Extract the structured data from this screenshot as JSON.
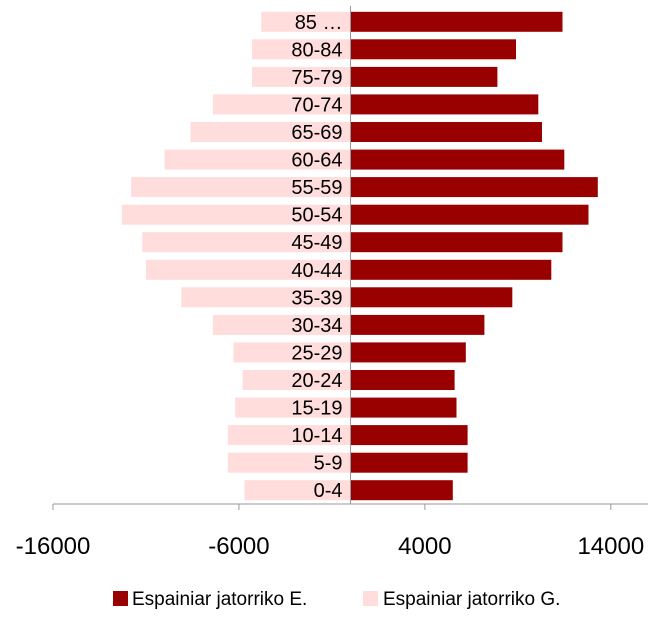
{
  "chart_data": {
    "type": "bar",
    "orientation": "horizontal",
    "layout": "population-pyramid",
    "categories": [
      "0-4",
      "5-9",
      "10-14",
      "15-19",
      "20-24",
      "25-29",
      "30-34",
      "35-39",
      "40-44",
      "45-49",
      "50-54",
      "55-59",
      "60-64",
      "65-69",
      "70-74",
      "75-79",
      "80-84",
      "85 …"
    ],
    "series": [
      {
        "name": "Espainiar jatorriko E.",
        "color": "#990000",
        "values": [
          5500,
          6300,
          6300,
          5700,
          5600,
          6200,
          7200,
          8700,
          10800,
          11400,
          12800,
          13300,
          11500,
          10300,
          10100,
          7900,
          8900,
          11400
        ]
      },
      {
        "name": "Espainiar jatorriko G.",
        "color": "#ffdddd",
        "values": [
          -5700,
          -6600,
          -6600,
          -6200,
          -5800,
          -6300,
          -7400,
          -9100,
          -11000,
          -11200,
          -12300,
          -11800,
          -10000,
          -8600,
          -7400,
          -5300,
          -5300,
          -4800
        ]
      }
    ],
    "xlim": [
      -16000,
      16000
    ],
    "xticks": [
      "-16000",
      "-6000",
      "4000",
      "14000"
    ],
    "xlabel": "",
    "ylabel": "",
    "title": "",
    "grid": false,
    "legend_position": "bottom"
  }
}
